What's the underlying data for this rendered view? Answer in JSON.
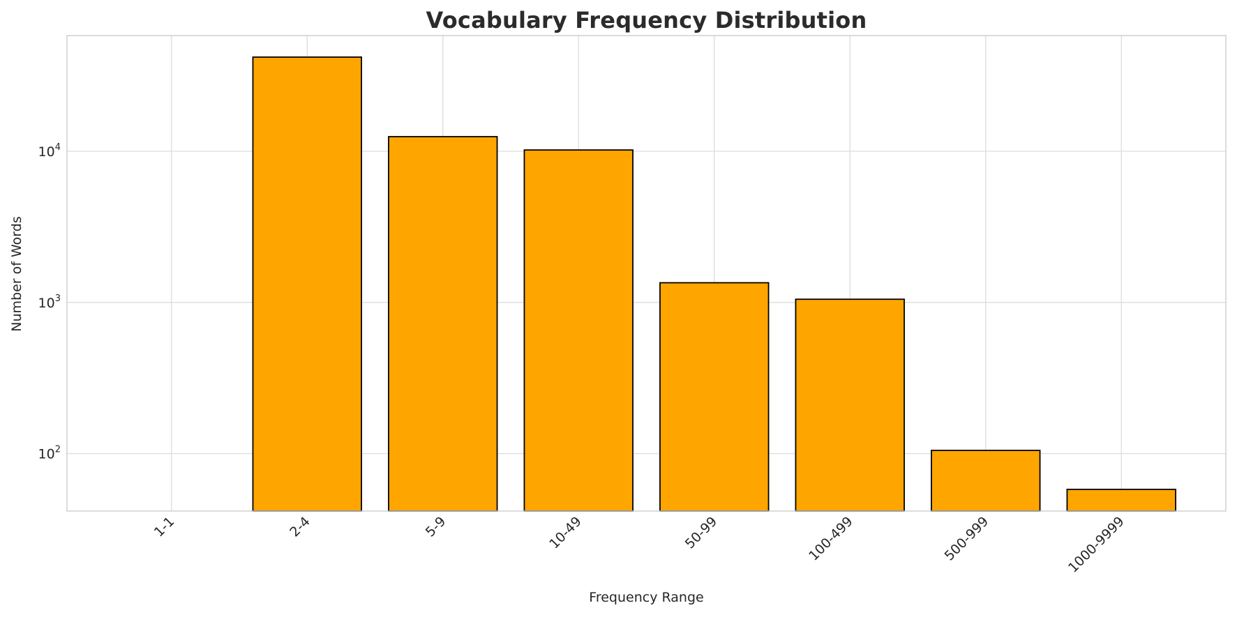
{
  "chart_data": {
    "type": "bar",
    "title": "Vocabulary Frequency Distribution",
    "xlabel": "Frequency Range",
    "ylabel": "Number of Words",
    "categories": [
      "1-1",
      "2-4",
      "5-9",
      "10-49",
      "50-99",
      "100-499",
      "500-999",
      "1000-9999"
    ],
    "values": [
      0,
      42000,
      12500,
      10200,
      1350,
      1050,
      105,
      58
    ],
    "yscale": "log",
    "ylim": [
      41.7,
      58300
    ],
    "yticks": [
      100,
      1000,
      10000
    ],
    "legend": "none",
    "grid": true,
    "colors": {
      "bar_fill": "#FFA500",
      "bar_edge": "#000000",
      "grid_line": "#dcdcdc",
      "spine": "#cccccc",
      "tick_text": "#262626",
      "background": "#ffffff"
    }
  }
}
